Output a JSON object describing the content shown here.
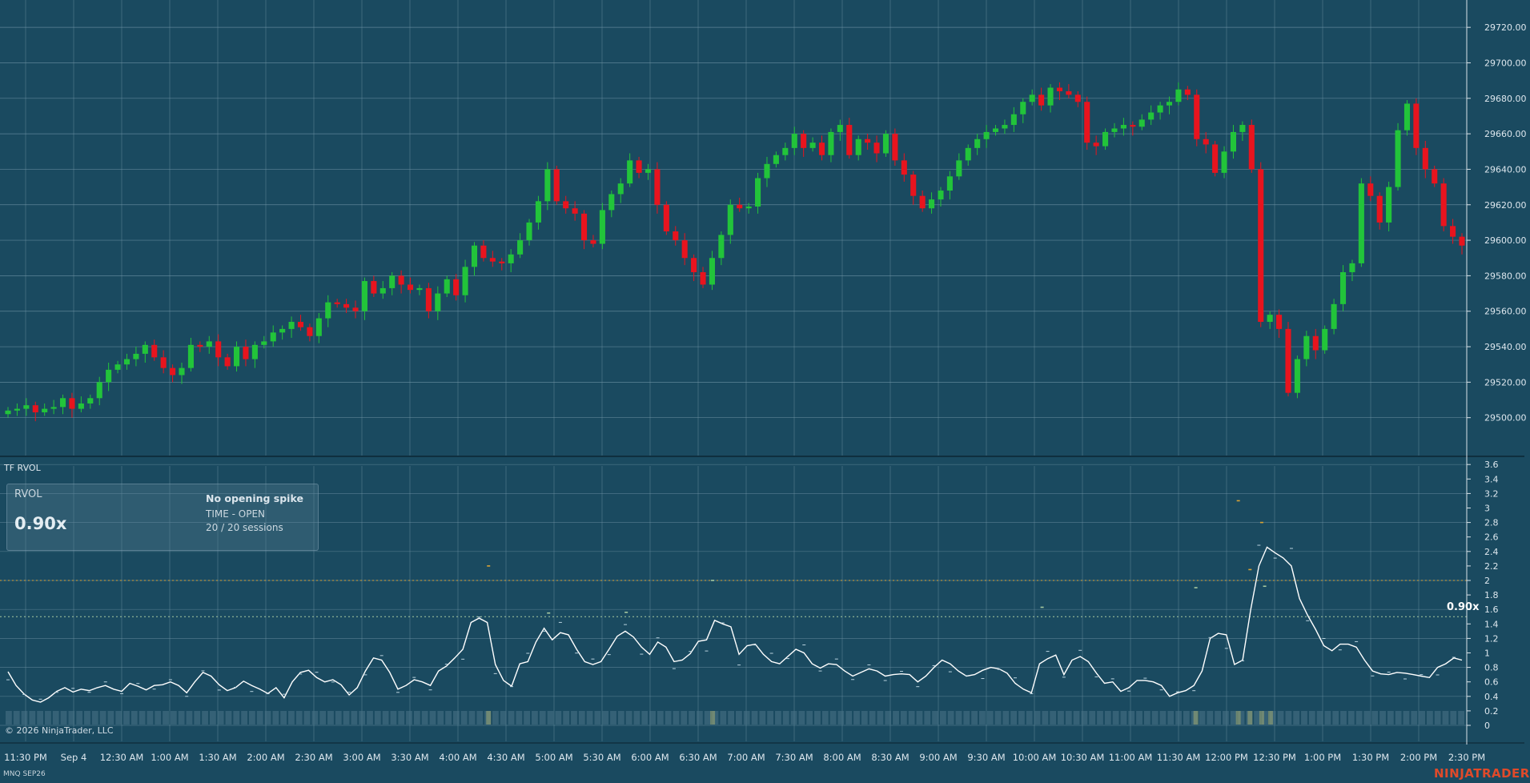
{
  "indicator": {
    "label": "TF RVOL",
    "panel": {
      "title": "RVOL",
      "value": "0.90x",
      "status": "No opening spike",
      "mode": "TIME - OPEN",
      "sessions": "20 / 20 sessions"
    },
    "current_value_label": "0.90x"
  },
  "footer": {
    "copyright": "© 2026 NinjaTrader, LLC",
    "instrument": "MNQ SEP26",
    "brand": "NINJATRADER"
  },
  "colors": {
    "background": "#1a4a60",
    "up_candle": "#22c43a",
    "down_candle": "#e8141e",
    "rvol_line": "#ffffff",
    "threshold_high": "#d9a436",
    "threshold_low": "#a7c9a0",
    "brand": "#e04a2a"
  },
  "chart_data": [
    {
      "type": "candlestick",
      "y_ticks": [
        "29720.00",
        "29700.00",
        "29680.00",
        "29660.00",
        "29640.00",
        "29620.00",
        "29600.00",
        "29580.00",
        "29560.00",
        "29540.00",
        "29520.00",
        "29500.00"
      ],
      "ylim": [
        29480,
        29730
      ],
      "x_ticks": [
        "11:30 PM",
        "Sep 4",
        "12:30 AM",
        "1:00 AM",
        "1:30 AM",
        "2:00 AM",
        "2:30 AM",
        "3:00 AM",
        "3:30 AM",
        "4:00 AM",
        "4:30 AM",
        "5:00 AM",
        "5:30 AM",
        "6:00 AM",
        "6:30 AM",
        "7:00 AM",
        "7:30 AM",
        "8:00 AM",
        "8:30 AM",
        "9:00 AM",
        "9:30 AM",
        "10:00 AM",
        "10:30 AM",
        "11:00 AM",
        "11:30 AM",
        "12:00 PM",
        "12:30 PM",
        "1:00 PM",
        "1:30 PM",
        "2:00 PM",
        "2:30 PM"
      ],
      "closes": [
        29504,
        29505,
        29507,
        29503,
        29505,
        29506,
        29511,
        29505,
        29508,
        29511,
        29520,
        29527,
        29530,
        29533,
        29536,
        29541,
        29534,
        29528,
        29524,
        29528,
        29541,
        29540,
        29543,
        29534,
        29529,
        29540,
        29533,
        29541,
        29543,
        29548,
        29550,
        29554,
        29551,
        29546,
        29556,
        29565,
        29564,
        29562,
        29560,
        29577,
        29570,
        29573,
        29580,
        29575,
        29572,
        29573,
        29560,
        29570,
        29578,
        29569,
        29585,
        29597,
        29590,
        29588,
        29587,
        29592,
        29600,
        29610,
        29622,
        29640,
        29622,
        29618,
        29615,
        29600,
        29598,
        29617,
        29626,
        29632,
        29645,
        29638,
        29640,
        29620,
        29605,
        29600,
        29590,
        29582,
        29575,
        29590,
        29603,
        29620,
        29618,
        29619,
        29635,
        29643,
        29648,
        29652,
        29660,
        29652,
        29655,
        29648,
        29661,
        29665,
        29648,
        29657,
        29655,
        29649,
        29660,
        29645,
        29637,
        29625,
        29618,
        29623,
        29628,
        29636,
        29645,
        29652,
        29657,
        29661,
        29663,
        29665,
        29671,
        29678,
        29682,
        29676,
        29686,
        29684,
        29682,
        29678,
        29655,
        29653,
        29661,
        29663,
        29665,
        29664,
        29668,
        29672,
        29676,
        29678,
        29685,
        29682,
        29657,
        29654,
        29638,
        29650,
        29661,
        29665,
        29640,
        29554,
        29558,
        29550,
        29514,
        29533,
        29546,
        29538,
        29550,
        29564,
        29582,
        29587,
        29632,
        29625,
        29610,
        29630,
        29662,
        29677,
        29652,
        29640,
        29632,
        29608,
        29602,
        29597
      ]
    },
    {
      "type": "line",
      "series": [
        {
          "name": "",
          "values": [
            0.74,
            0.55,
            0.43,
            0.35,
            0.32,
            0.38,
            0.47,
            0.52,
            0.46,
            0.5,
            0.48,
            0.52,
            0.55,
            0.5,
            0.47,
            0.58,
            0.54,
            0.49,
            0.55,
            0.56,
            0.6,
            0.55,
            0.45,
            0.6,
            0.73,
            0.68,
            0.56,
            0.48,
            0.52,
            0.61,
            0.55,
            0.5,
            0.44,
            0.52,
            0.38,
            0.6,
            0.73,
            0.76,
            0.66,
            0.6,
            0.63,
            0.56,
            0.42,
            0.52,
            0.75,
            0.93,
            0.9,
            0.73,
            0.5,
            0.55,
            0.63,
            0.6,
            0.55,
            0.75,
            0.82,
            0.93,
            1.05,
            1.42,
            1.48,
            1.42,
            0.84,
            0.62,
            0.54,
            0.85,
            0.88,
            1.15,
            1.34,
            1.18,
            1.28,
            1.25,
            1.05,
            0.88,
            0.84,
            0.88,
            1.05,
            1.23,
            1.3,
            1.22,
            1.08,
            0.98,
            1.15,
            1.08,
            0.88,
            0.9,
            0.99,
            1.16,
            1.18,
            1.45,
            1.4,
            1.36,
            0.98,
            1.1,
            1.12,
            0.98,
            0.88,
            0.85,
            0.95,
            1.05,
            1.0,
            0.85,
            0.79,
            0.85,
            0.84,
            0.75,
            0.68,
            0.73,
            0.78,
            0.75,
            0.68,
            0.7,
            0.71,
            0.7,
            0.6,
            0.68,
            0.8,
            0.9,
            0.85,
            0.75,
            0.68,
            0.7,
            0.76,
            0.8,
            0.78,
            0.72,
            0.58,
            0.5,
            0.45,
            0.85,
            0.92,
            0.97,
            0.7,
            0.9,
            0.95,
            0.88,
            0.72,
            0.58,
            0.6,
            0.47,
            0.52,
            0.62,
            0.62,
            0.6,
            0.55,
            0.4,
            0.45,
            0.48,
            0.55,
            0.75,
            1.2,
            1.27,
            1.25,
            0.84,
            0.9,
            1.6,
            2.2,
            2.46,
            2.38,
            2.31,
            2.2,
            1.75,
            1.52,
            1.32,
            1.1,
            1.03,
            1.12,
            1.12,
            1.08,
            0.9,
            0.75,
            0.71,
            0.7,
            0.73,
            0.72,
            0.7,
            0.68,
            0.66,
            0.8,
            0.85,
            0.93,
            0.9
          ]
        }
      ],
      "y_ticks": [
        "3.6",
        "3.4",
        "3.2",
        "3",
        "2.8",
        "2.6",
        "2.4",
        "2.2",
        "2",
        "1.8",
        "1.6",
        "1.4",
        "1.2",
        "1",
        "0.8",
        "0.6",
        "0.4",
        "0.2",
        "0"
      ],
      "ylim": [
        0,
        3.6
      ],
      "thresholds": [
        2.0,
        1.5
      ],
      "markers": [
        {
          "x": 0.332,
          "y": 2.2,
          "color": "#d9a436"
        },
        {
          "x": 0.844,
          "y": 3.1,
          "color": "#d9a436"
        },
        {
          "x": 0.86,
          "y": 2.8,
          "color": "#d9a436"
        },
        {
          "x": 0.852,
          "y": 2.15,
          "color": "#d9a436"
        },
        {
          "x": 0.373,
          "y": 1.55,
          "color": "#a7c9a0"
        },
        {
          "x": 0.426,
          "y": 1.56,
          "color": "#a7c9a0"
        },
        {
          "x": 0.485,
          "y": 2.0,
          "color": "#a7c9a0"
        },
        {
          "x": 0.71,
          "y": 1.63,
          "color": "#a7c9a0"
        },
        {
          "x": 0.815,
          "y": 1.9,
          "color": "#a7c9a0"
        },
        {
          "x": 0.862,
          "y": 1.92,
          "color": "#a7c9a0"
        }
      ],
      "volume_strip_highlights": [
        0.332,
        0.485,
        0.815,
        0.844,
        0.852,
        0.86,
        0.866
      ]
    }
  ]
}
